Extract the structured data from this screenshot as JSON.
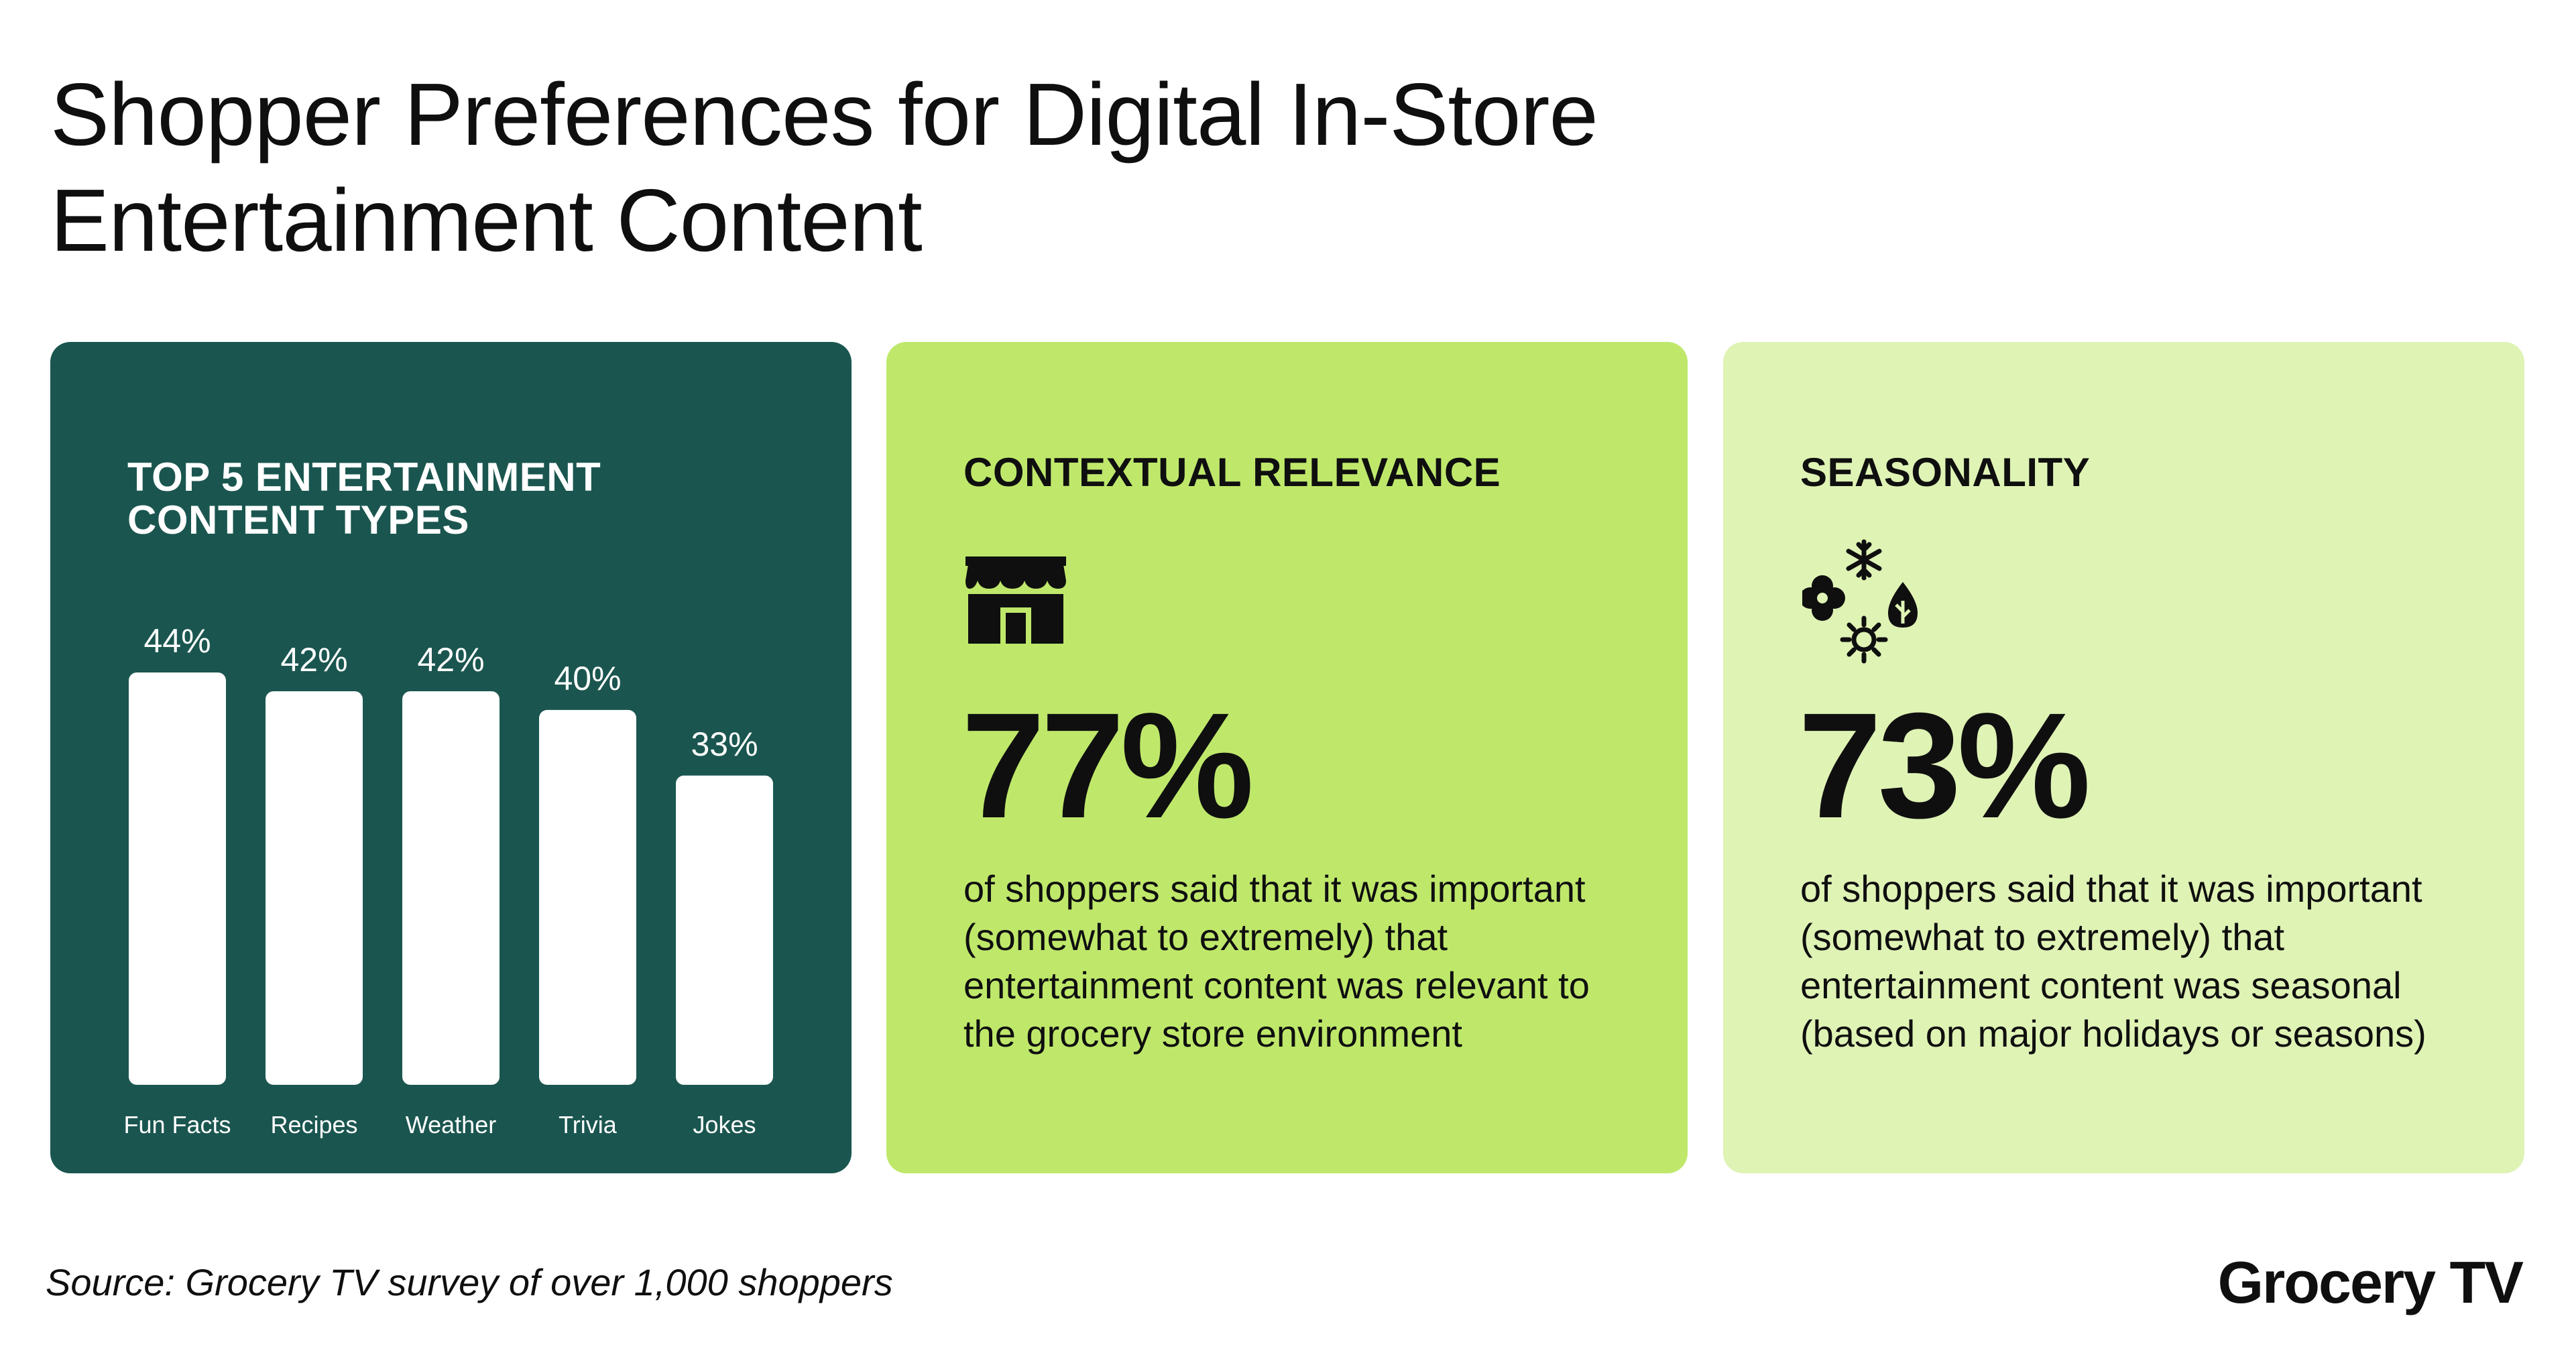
{
  "page": {
    "title": "Shopper Preferences for Digital In-Store Entertainment Content",
    "source": "Source: Grocery TV survey of over 1,000 shoppers",
    "brand": "Grocery TV"
  },
  "cards": {
    "chart": {
      "heading": "TOP 5 ENTERTAINMENT CONTENT TYPES",
      "background": "#1a564f"
    },
    "context": {
      "heading": "CONTEXTUAL RELEVANCE",
      "icon": "storefront-icon",
      "stat": "77%",
      "description": "of shoppers said that it was important (somewhat to extremely) that entertainment content was relevant to the grocery store environment",
      "background": "#bfe86b"
    },
    "season": {
      "heading": "SEASONALITY",
      "icon": "seasons-icon",
      "stat": "73%",
      "description": "of shoppers said that it was important (somewhat to extremely) that entertainment content was seasonal (based on major holidays or seasons)",
      "background": "#dff3b5"
    }
  },
  "chart_data": {
    "type": "bar",
    "title": "TOP 5 ENTERTAINMENT CONTENT TYPES",
    "categories": [
      "Fun Facts",
      "Recipes",
      "Weather",
      "Trivia",
      "Jokes"
    ],
    "values": [
      44,
      42,
      42,
      40,
      33
    ],
    "value_labels": [
      "44%",
      "42%",
      "42%",
      "40%",
      "33%"
    ],
    "unit": "%",
    "ylim": [
      0,
      44
    ],
    "grid": false,
    "bar_color": "#ffffff"
  }
}
